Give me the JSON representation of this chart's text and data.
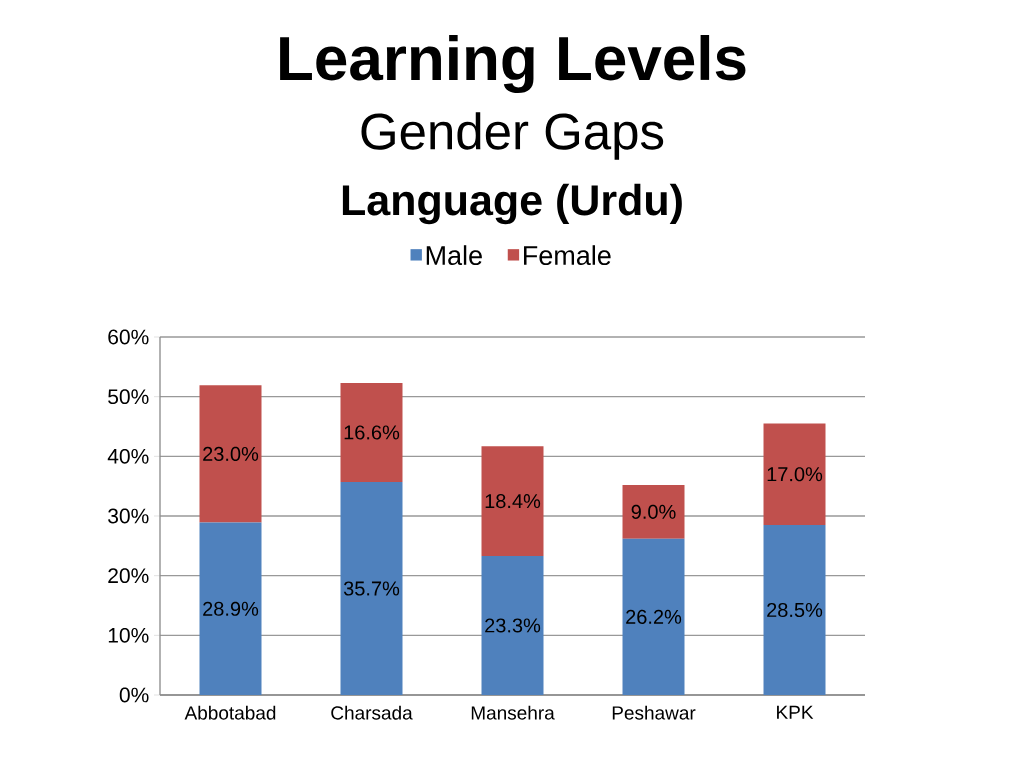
{
  "chart_data": {
    "type": "bar",
    "stacked": true,
    "title": "Learning Levels",
    "subtitle": "Gender Gaps",
    "annotations": [
      "Language (Urdu)"
    ],
    "categories": [
      "Abbotabad",
      "Charsada",
      "Mansehra",
      "Peshawar",
      "KPK"
    ],
    "series": [
      {
        "name": "Male",
        "color": "#4f81bd",
        "values": [
          28.9,
          35.7,
          23.3,
          26.2,
          28.5
        ],
        "value_labels": [
          "28.9%",
          "35.7%",
          "23.3%",
          "26.2%",
          "28.5%"
        ]
      },
      {
        "name": "Female",
        "color": "#c0504d",
        "values": [
          23.0,
          16.6,
          18.4,
          9.0,
          17.0
        ],
        "value_labels": [
          "23.0%",
          "16.6%",
          "18.4%",
          "9.0%",
          "17.0%"
        ]
      }
    ],
    "ylim": [
      0,
      60
    ],
    "yticks": [
      {
        "value": 0,
        "label": "0%"
      },
      {
        "value": 10,
        "label": "10%"
      },
      {
        "value": 20,
        "label": "20%"
      },
      {
        "value": 30,
        "label": "30%"
      },
      {
        "value": 40,
        "label": "40%"
      },
      {
        "value": 50,
        "label": "50%"
      },
      {
        "value": 60,
        "label": "60%"
      }
    ],
    "grid": "y",
    "legend": "top"
  }
}
